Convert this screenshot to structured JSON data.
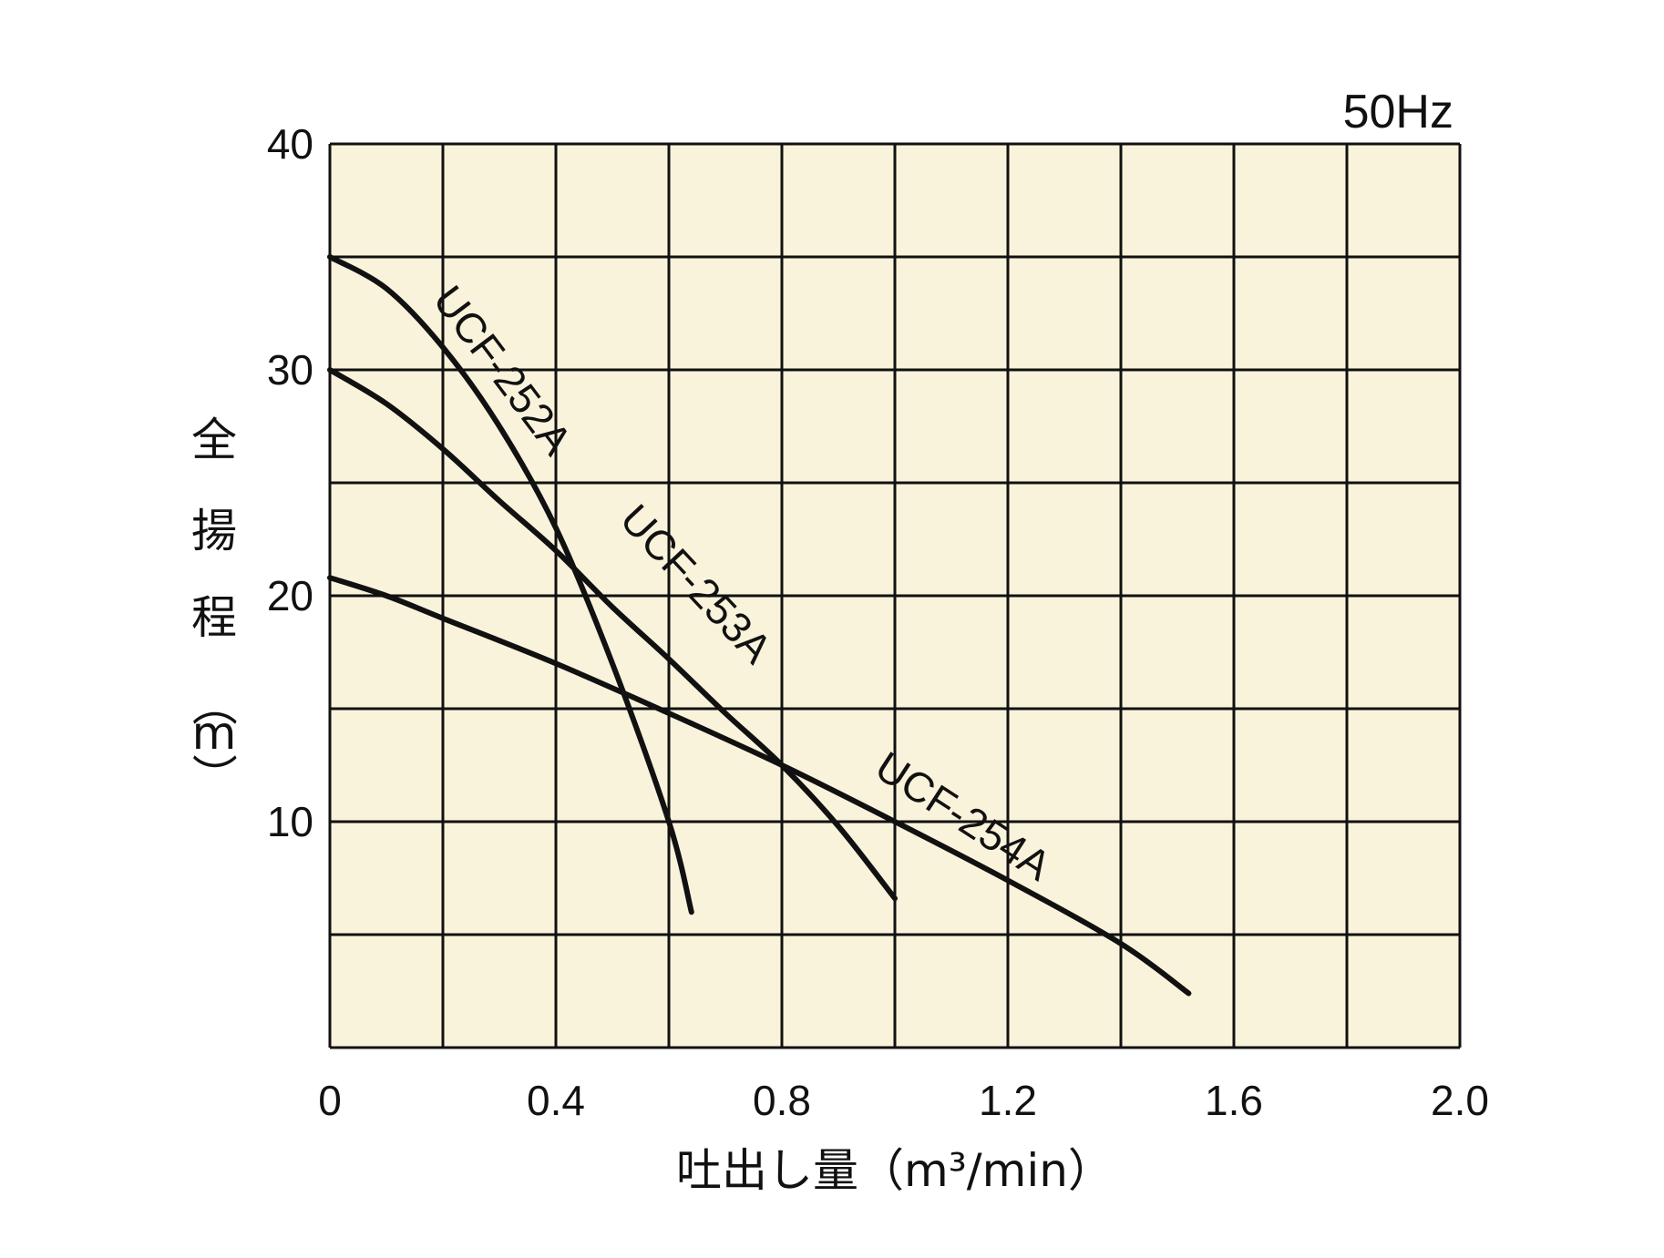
{
  "chart_data": {
    "type": "line",
    "frequency_label": "50Hz",
    "xlabel": "吐出し量（m³/min）",
    "ylabel": [
      "全",
      "揚",
      "程",
      "（",
      "m",
      "）"
    ],
    "xlim": [
      0,
      2.0
    ],
    "ylim": [
      0,
      40
    ],
    "x_ticks": [
      "0",
      "0.4",
      "0.8",
      "1.2",
      "1.6",
      "2.0"
    ],
    "y_ticks": [
      "10",
      "20",
      "30",
      "40"
    ],
    "grid": true,
    "series": [
      {
        "name": "UCF-252A",
        "points": [
          [
            0,
            35
          ],
          [
            0.1,
            33.6
          ],
          [
            0.2,
            31.0
          ],
          [
            0.3,
            27.5
          ],
          [
            0.4,
            23.0
          ],
          [
            0.5,
            17.0
          ],
          [
            0.6,
            10.0
          ],
          [
            0.64,
            6.0
          ]
        ]
      },
      {
        "name": "UCF-253A",
        "points": [
          [
            0,
            30
          ],
          [
            0.1,
            28.5
          ],
          [
            0.2,
            26.5
          ],
          [
            0.3,
            24.2
          ],
          [
            0.4,
            22.0
          ],
          [
            0.5,
            19.5
          ],
          [
            0.6,
            17.2
          ],
          [
            0.7,
            14.8
          ],
          [
            0.8,
            12.5
          ],
          [
            0.9,
            9.8
          ],
          [
            1.0,
            6.6
          ]
        ]
      },
      {
        "name": "UCF-254A",
        "points": [
          [
            0,
            20.8
          ],
          [
            0.1,
            20.0
          ],
          [
            0.2,
            19.0
          ],
          [
            0.4,
            17.0
          ],
          [
            0.6,
            14.8
          ],
          [
            0.8,
            12.5
          ],
          [
            1.0,
            10.0
          ],
          [
            1.2,
            7.4
          ],
          [
            1.4,
            4.6
          ],
          [
            1.52,
            2.4
          ]
        ]
      }
    ]
  }
}
